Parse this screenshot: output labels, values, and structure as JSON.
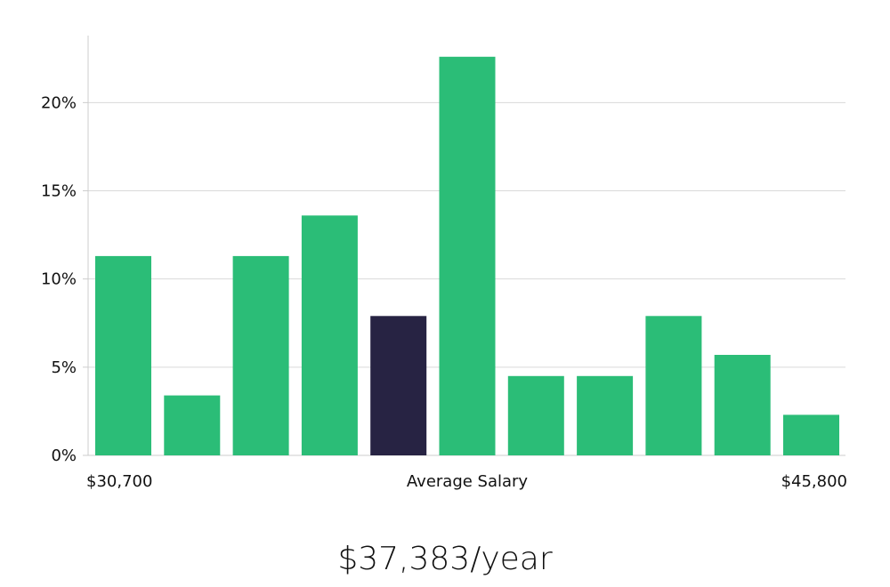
{
  "chart_data": {
    "type": "bar",
    "values": [
      11.3,
      3.4,
      11.3,
      13.6,
      7.9,
      22.6,
      4.5,
      4.5,
      7.9,
      5.7,
      2.3
    ],
    "highlight_index": 4,
    "y_ticks": [
      {
        "value": 0,
        "label": "0%"
      },
      {
        "value": 5,
        "label": "5%"
      },
      {
        "value": 10,
        "label": "10%"
      },
      {
        "value": 15,
        "label": "15%"
      },
      {
        "value": 20,
        "label": "20%"
      }
    ],
    "ylim": [
      0,
      23.8
    ],
    "grid": true,
    "x_labels": {
      "min": "$30,700",
      "center": "Average Salary",
      "max": "$45,800"
    },
    "colors": {
      "bar": "#2bbd77",
      "highlight": "#272343",
      "grid": "#d9d9d9",
      "axis": "#cccccc"
    }
  },
  "summary": {
    "salary": "$37,383/year"
  }
}
